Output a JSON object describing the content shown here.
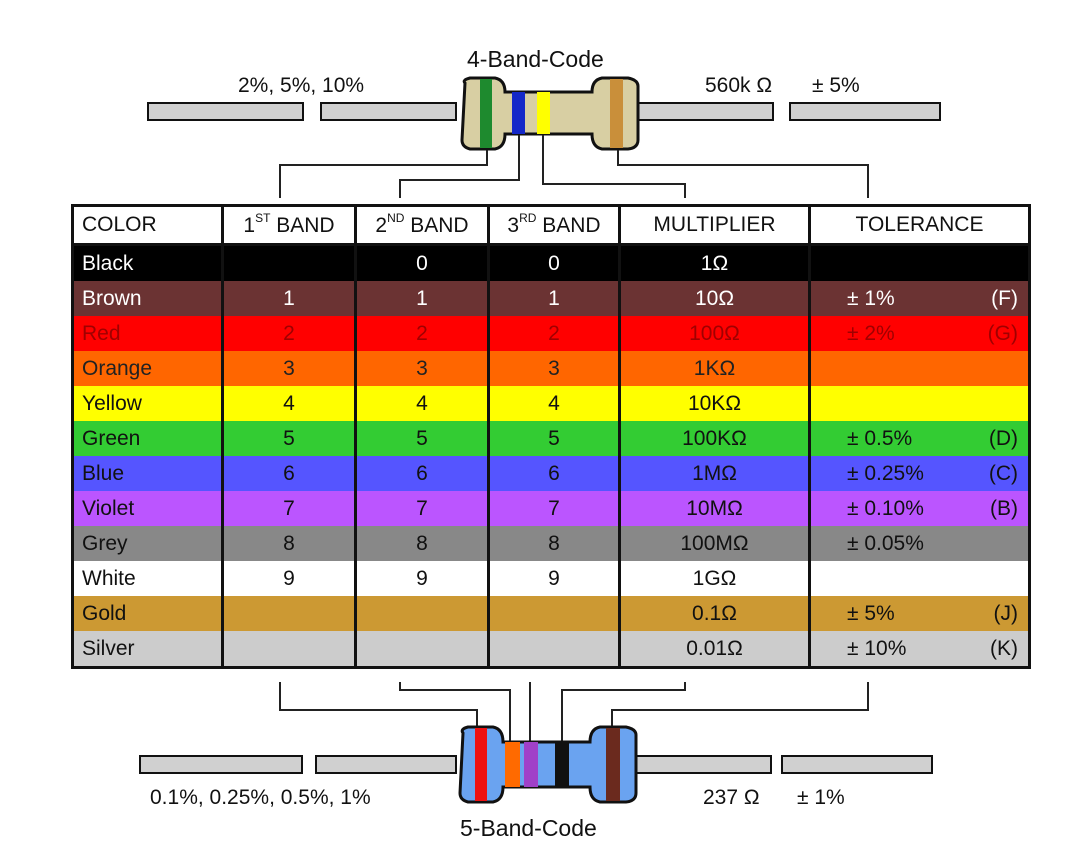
{
  "top": {
    "title": "4-Band-Code",
    "left_label": "2%, 5%, 10%",
    "right_value": "560k Ω",
    "right_tol": "± 5%",
    "band_colors": [
      "#1e8a2e",
      "#1428c8",
      "#ffff00",
      "#c98f3a"
    ]
  },
  "bottom": {
    "title": "5-Band-Code",
    "left_label": "0.1%, 0.25%, 0.5%, 1%",
    "right_value": "237 Ω",
    "right_tol": "± 1%",
    "band_colors": [
      "#ee1111",
      "#ff6a00",
      "#a040c8",
      "#111111",
      "#6b2a1e"
    ]
  },
  "table": {
    "headers": {
      "color": "COLOR",
      "b1_num": "1",
      "b1_sup": "ST",
      "b1_word": "BAND",
      "b2_num": "2",
      "b2_sup": "ND",
      "b2_word": "BAND",
      "b3_num": "3",
      "b3_sup": "RD",
      "b3_word": "BAND",
      "multiplier": "MULTIPLIER",
      "tolerance": "TOLERANCE"
    },
    "rows": [
      {
        "name": "Black",
        "bg": "#000000",
        "fg": "#ffffff",
        "b1": "",
        "b2": "0",
        "b3": "0",
        "mult": "1Ω",
        "tol": "",
        "code": ""
      },
      {
        "name": "Brown",
        "bg": "#6b3333",
        "fg": "#ffffff",
        "b1": "1",
        "b2": "1",
        "b3": "1",
        "mult": "10Ω",
        "tol": "± 1%",
        "code": "(F)"
      },
      {
        "name": "Red",
        "bg": "#ff0000",
        "fg": "#a00000",
        "b1": "2",
        "b2": "2",
        "b3": "2",
        "mult": "100Ω",
        "tol": "± 2%",
        "code": "(G)"
      },
      {
        "name": "Orange",
        "bg": "#ff6600",
        "fg": "#222222",
        "b1": "3",
        "b2": "3",
        "b3": "3",
        "mult": "1KΩ",
        "tol": "",
        "code": ""
      },
      {
        "name": "Yellow",
        "bg": "#ffff00",
        "fg": "#111111",
        "b1": "4",
        "b2": "4",
        "b3": "4",
        "mult": "10KΩ",
        "tol": "",
        "code": ""
      },
      {
        "name": "Green",
        "bg": "#33cc33",
        "fg": "#111111",
        "b1": "5",
        "b2": "5",
        "b3": "5",
        "mult": "100KΩ",
        "tol": "± 0.5%",
        "code": "(D)"
      },
      {
        "name": "Blue",
        "bg": "#5555ff",
        "fg": "#111111",
        "b1": "6",
        "b2": "6",
        "b3": "6",
        "mult": "1MΩ",
        "tol": "± 0.25%",
        "code": "(C)"
      },
      {
        "name": "Violet",
        "bg": "#bb55ff",
        "fg": "#111111",
        "b1": "7",
        "b2": "7",
        "b3": "7",
        "mult": "10MΩ",
        "tol": "± 0.10%",
        "code": "(B)"
      },
      {
        "name": "Grey",
        "bg": "#888888",
        "fg": "#111111",
        "b1": "8",
        "b2": "8",
        "b3": "8",
        "mult": "100MΩ",
        "tol": "± 0.05%",
        "code": ""
      },
      {
        "name": "White",
        "bg": "#ffffff",
        "fg": "#111111",
        "b1": "9",
        "b2": "9",
        "b3": "9",
        "mult": "1GΩ",
        "tol": "",
        "code": ""
      },
      {
        "name": "Gold",
        "bg": "#cc9933",
        "fg": "#111111",
        "b1": "",
        "b2": "",
        "b3": "",
        "mult": "0.1Ω",
        "tol": "± 5%",
        "code": "(J)"
      },
      {
        "name": "Silver",
        "bg": "#cccccc",
        "fg": "#111111",
        "b1": "",
        "b2": "",
        "b3": "",
        "mult": "0.01Ω",
        "tol": "± 10%",
        "code": "(K)"
      }
    ]
  }
}
